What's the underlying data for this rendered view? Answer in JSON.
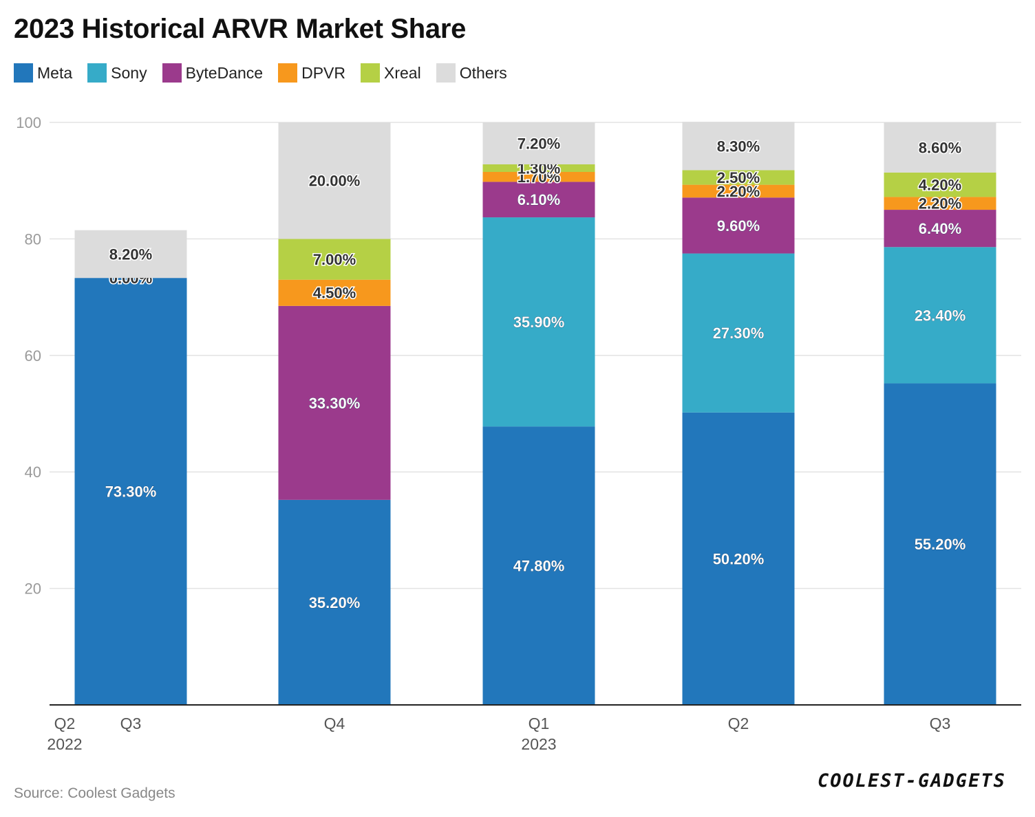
{
  "chart_data": {
    "type": "bar",
    "stacked": true,
    "title": "2023 Historical ARVR Market Share",
    "categories": [
      "Q3",
      "Q4",
      "Q1",
      "Q2",
      "Q3"
    ],
    "x_axis": {
      "start_label": "Q2",
      "year_labels": [
        {
          "category_index": 0,
          "label": "2022"
        },
        {
          "category_index": 2,
          "label": "2023"
        }
      ]
    },
    "ylim": [
      0,
      100
    ],
    "yticks": [
      20,
      40,
      60,
      80,
      100
    ],
    "grid": true,
    "legend_position": "top-left",
    "series": [
      {
        "name": "Meta",
        "color": "#2277bb",
        "values": [
          73.3,
          35.2,
          47.8,
          50.2,
          55.2
        ],
        "labels": [
          "73.30%",
          "35.20%",
          "47.80%",
          "50.20%",
          "55.20%"
        ]
      },
      {
        "name": "Sony",
        "color": "#36abc8",
        "values": [
          0,
          0,
          35.9,
          27.3,
          23.4
        ],
        "labels": [
          null,
          null,
          "35.90%",
          "27.30%",
          "23.40%"
        ]
      },
      {
        "name": "ByteDance",
        "color": "#9b3a8c",
        "values": [
          0,
          33.3,
          6.1,
          9.6,
          6.4
        ],
        "labels": [
          "0.00%",
          "33.30%",
          "6.10%",
          "9.60%",
          "6.40%"
        ]
      },
      {
        "name": "DPVR",
        "color": "#f7981d",
        "values": [
          0,
          4.5,
          1.7,
          2.2,
          2.2
        ],
        "labels": [
          null,
          "4.50%",
          "1.70%",
          "2.20%",
          "2.20%"
        ]
      },
      {
        "name": "Xreal",
        "color": "#b5d045",
        "values": [
          0,
          7.0,
          1.3,
          2.5,
          4.2
        ],
        "labels": [
          null,
          "7.00%",
          "1.30%",
          "2.50%",
          "4.20%"
        ]
      },
      {
        "name": "Others",
        "color": "#dcdcdc",
        "values": [
          8.2,
          20.0,
          7.2,
          8.3,
          8.6
        ],
        "labels": [
          "8.20%",
          "20.00%",
          "7.20%",
          "8.30%",
          "8.60%"
        ]
      }
    ]
  },
  "footer": {
    "source": "Source: Coolest Gadgets",
    "logo": "COOLEST-GADGETS"
  }
}
